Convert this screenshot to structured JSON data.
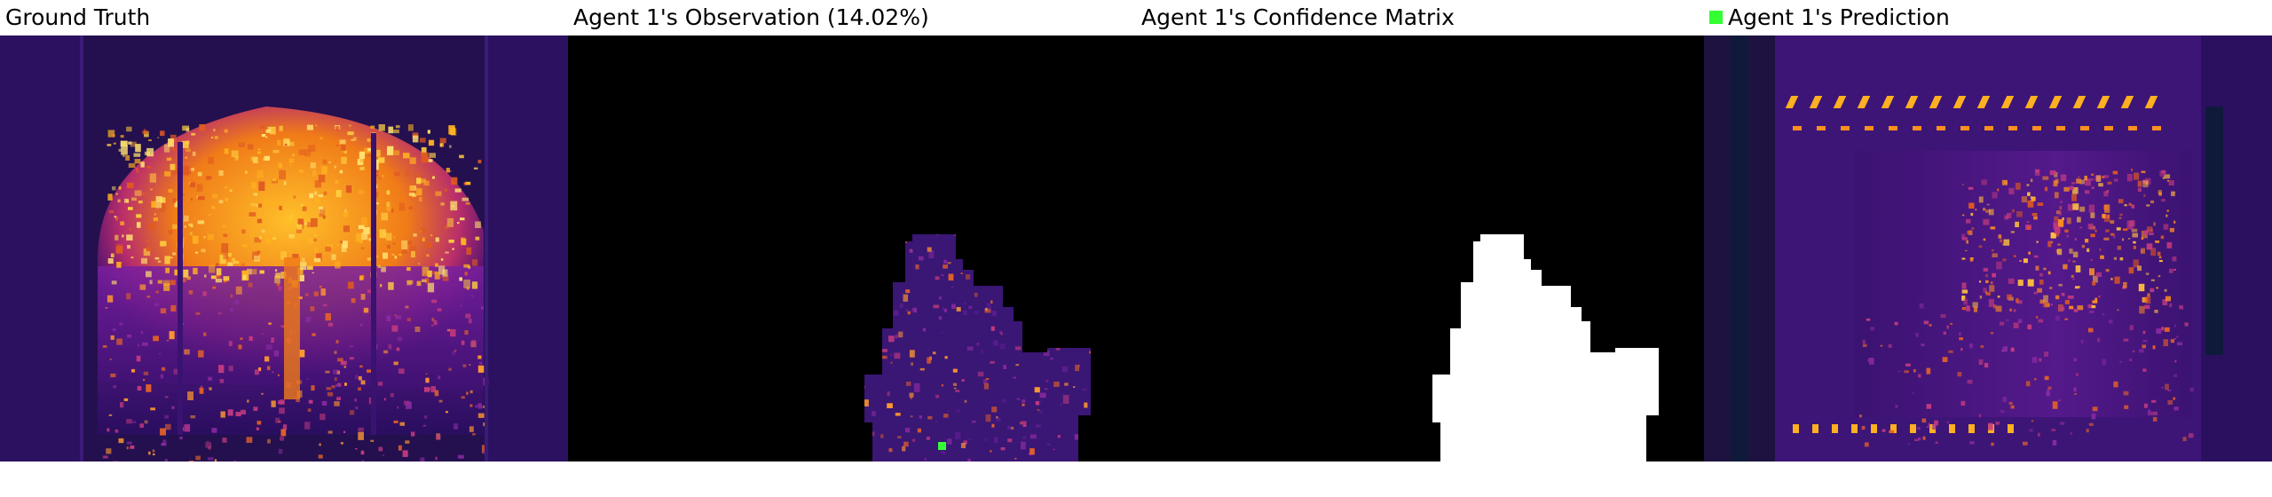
{
  "panels": [
    {
      "title": "Ground Truth"
    },
    {
      "title": "Agent 1's Observation (14.02%)"
    },
    {
      "title": "Agent 1's Confidence Matrix"
    },
    {
      "title": "Agent 1's Prediction"
    }
  ],
  "colors": {
    "background_dark": "#1e0a44",
    "observed_mask": "#000000",
    "confidence_high": "#ffffff",
    "agent_marker": "#33ff33",
    "heat_hot": "#ffb020"
  }
}
